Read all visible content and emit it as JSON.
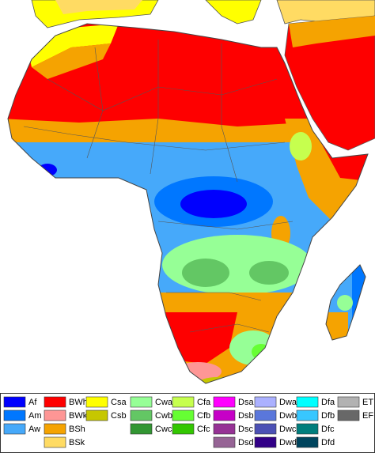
{
  "legend": {
    "columns": [
      [
        {
          "label": "Af",
          "color": "#0000fe"
        },
        {
          "label": "Am",
          "color": "#0077ff"
        },
        {
          "label": "Aw",
          "color": "#46a9fa"
        }
      ],
      [
        {
          "label": "BWh",
          "color": "#fe0000"
        },
        {
          "label": "BWk",
          "color": "#fe9695"
        },
        {
          "label": "BSh",
          "color": "#f5a301"
        },
        {
          "label": "BSk",
          "color": "#ffdb63"
        }
      ],
      [
        {
          "label": "Csa",
          "color": "#ffff00"
        },
        {
          "label": "Csb",
          "color": "#c6c700"
        }
      ],
      [
        {
          "label": "Cwa",
          "color": "#96ff96"
        },
        {
          "label": "Cwb",
          "color": "#63c764"
        },
        {
          "label": "Cwc",
          "color": "#329633"
        }
      ],
      [
        {
          "label": "Cfa",
          "color": "#c6ff4e"
        },
        {
          "label": "Cfb",
          "color": "#66ff33"
        },
        {
          "label": "Cfc",
          "color": "#33c701"
        }
      ],
      [
        {
          "label": "Dsa",
          "color": "#ff00fe"
        },
        {
          "label": "Dsb",
          "color": "#c600c7"
        },
        {
          "label": "Dsc",
          "color": "#963295"
        },
        {
          "label": "Dsd",
          "color": "#966495"
        }
      ],
      [
        {
          "label": "Dwa",
          "color": "#abb1ff"
        },
        {
          "label": "Dwb",
          "color": "#5a77db"
        },
        {
          "label": "Dwc",
          "color": "#4c51b5"
        },
        {
          "label": "Dwd",
          "color": "#320087"
        }
      ],
      [
        {
          "label": "Dfa",
          "color": "#00ffff"
        },
        {
          "label": "Dfb",
          "color": "#38c7ff"
        },
        {
          "label": "Dfc",
          "color": "#007e7d"
        },
        {
          "label": "Dfd",
          "color": "#00455e"
        }
      ],
      [
        {
          "label": "ET",
          "color": "#b2b2b2"
        },
        {
          "label": "EF",
          "color": "#686868"
        }
      ]
    ]
  }
}
